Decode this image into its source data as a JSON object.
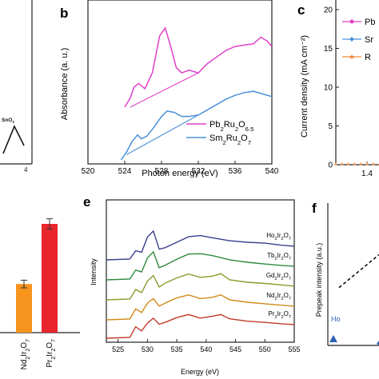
{
  "panels": {
    "a": {
      "inline_label": "SnO",
      "inline_sub": "2",
      "tick_right": "4"
    },
    "b": {
      "panel_label": "b",
      "xlabel": "Photon energy (eV)",
      "ylabel": "Absorbance (a. u.)",
      "xticks": [
        "520",
        "524",
        "528",
        "532",
        "536",
        "540"
      ],
      "legend": [
        {
          "id": "pb",
          "color": "#e040c8",
          "parts": [
            [
              "Pb",
              ""
            ],
            [
              "2",
              "sub"
            ],
            [
              "Ru",
              ""
            ],
            [
              "2",
              "sub"
            ],
            [
              "O",
              ""
            ],
            [
              "6.5",
              "sub"
            ]
          ]
        },
        {
          "id": "sm",
          "color": "#4a90d9",
          "parts": [
            [
              "Sm",
              ""
            ],
            [
              "2",
              "sub"
            ],
            [
              "Ru",
              ""
            ],
            [
              "2",
              "sub"
            ],
            [
              "O",
              ""
            ],
            [
              "7",
              "sub"
            ]
          ]
        }
      ]
    },
    "c": {
      "panel_label": "c",
      "ylabel": "Current density (mA cm⁻²)",
      "yticks": [
        "0",
        "5",
        "10",
        "15",
        "20"
      ],
      "xtick": "1.4",
      "legend": [
        {
          "label": "Pb",
          "color": "#e040c8"
        },
        {
          "label": "Sr",
          "color": "#4a90d9"
        },
        {
          "label": "R",
          "color": "#f08a40"
        }
      ]
    },
    "d": {
      "bars": [
        {
          "id": "nd",
          "color": "#f7941d",
          "parts": [
            [
              "Nd",
              ""
            ],
            [
              "2",
              "sub"
            ],
            [
              "Ir",
              ""
            ],
            [
              "2",
              "sub"
            ],
            [
              "O",
              ""
            ],
            [
              "7",
              "sub"
            ]
          ]
        },
        {
          "id": "pr",
          "color": "#e8262b",
          "parts": [
            [
              "Pr",
              ""
            ],
            [
              "2",
              "sub"
            ],
            [
              "Ir",
              ""
            ],
            [
              "2",
              "sub"
            ],
            [
              "O",
              ""
            ],
            [
              "7",
              "sub"
            ]
          ]
        }
      ]
    },
    "e": {
      "panel_label": "e",
      "xlabel": "Energy (eV)",
      "ylabel": "Intensity",
      "xticks": [
        "525",
        "530",
        "535",
        "540",
        "545",
        "550",
        "555"
      ],
      "curves": [
        {
          "id": "ho",
          "color": "#3b3f8f",
          "parts": [
            [
              "Ho",
              ""
            ],
            [
              "2",
              "sub"
            ],
            [
              "Ir",
              ""
            ],
            [
              "2",
              "sub"
            ],
            [
              "O",
              ""
            ],
            [
              "7",
              "sub"
            ]
          ]
        },
        {
          "id": "tb",
          "color": "#2e8a3e",
          "parts": [
            [
              "Tb",
              ""
            ],
            [
              "2",
              "sub"
            ],
            [
              "Ir",
              ""
            ],
            [
              "2",
              "sub"
            ],
            [
              "O",
              ""
            ],
            [
              "7",
              "sub"
            ]
          ]
        },
        {
          "id": "gd",
          "color": "#8a9a2c",
          "parts": [
            [
              "Gd",
              ""
            ],
            [
              "2",
              "sub"
            ],
            [
              "Ir",
              ""
            ],
            [
              "2",
              "sub"
            ],
            [
              "O",
              ""
            ],
            [
              "7",
              "sub"
            ]
          ]
        },
        {
          "id": "nd",
          "color": "#d08a1a",
          "parts": [
            [
              "Nd",
              ""
            ],
            [
              "2",
              "sub"
            ],
            [
              "Ir",
              ""
            ],
            [
              "2",
              "sub"
            ],
            [
              "O",
              ""
            ],
            [
              "7",
              "sub"
            ]
          ]
        },
        {
          "id": "pr",
          "color": "#c03a2a",
          "parts": [
            [
              "Pr",
              ""
            ],
            [
              "2",
              "sub"
            ],
            [
              "Ir",
              ""
            ],
            [
              "2",
              "sub"
            ],
            [
              "O",
              ""
            ],
            [
              "7",
              "sub"
            ]
          ]
        }
      ]
    },
    "f": {
      "panel_label": "f",
      "ylabel": "Prepeak intensity (a.u.)",
      "point_label": "Ho",
      "marker_color": "#2f5fb3"
    }
  },
  "chart_data": [
    {
      "panel": "b",
      "type": "line",
      "xlabel": "Photon energy (eV)",
      "ylabel": "Absorbance (a. u.)",
      "xlim": [
        520,
        540
      ],
      "series": [
        {
          "name": "Pb2Ru2O6.5",
          "color": "#e040c8",
          "x": [
            524.0,
            524.6,
            525.0,
            525.5,
            526.2,
            527.0,
            527.8,
            528.4,
            529.0,
            529.6,
            530.2,
            531.0,
            532.0,
            533.0,
            534.0,
            535.0,
            536.0,
            537.0,
            538.0,
            538.8,
            539.5,
            540.0
          ],
          "y": [
            0.4,
            0.47,
            0.55,
            0.58,
            0.54,
            0.66,
            0.94,
            1.0,
            0.86,
            0.7,
            0.66,
            0.68,
            0.66,
            0.73,
            0.78,
            0.83,
            0.86,
            0.87,
            0.88,
            0.93,
            0.9,
            0.86
          ]
        },
        {
          "name": "Sm2Ru2O7",
          "color": "#4a90d9",
          "x": [
            523.6,
            524.2,
            524.8,
            525.4,
            525.8,
            526.4,
            527.2,
            528.0,
            528.6,
            529.4,
            530.2,
            531.0,
            532.0,
            533.0,
            534.0,
            535.0,
            536.0,
            537.0,
            538.0,
            539.0,
            540.0
          ],
          "y": [
            0.0,
            0.06,
            0.14,
            0.19,
            0.16,
            0.18,
            0.25,
            0.33,
            0.37,
            0.36,
            0.33,
            0.33,
            0.34,
            0.38,
            0.42,
            0.46,
            0.49,
            0.51,
            0.52,
            0.5,
            0.48
          ]
        },
        {
          "name": "Pb2Ru2O6.5 background",
          "color": "#e040c8",
          "x": [
            524.6,
            532.0
          ],
          "y": [
            0.4,
            0.66
          ]
        },
        {
          "name": "Sm2Ru2O7 background",
          "color": "#4a90d9",
          "x": [
            524.2,
            532.0
          ],
          "y": [
            0.04,
            0.34
          ]
        }
      ]
    },
    {
      "panel": "c",
      "type": "line",
      "ylabel": "Current density (mA cm⁻²)",
      "ylim": [
        0,
        20
      ],
      "xlim": [
        1.3,
        1.5
      ],
      "series": [
        {
          "name": "Pb",
          "color": "#e040c8",
          "x": [
            1.3,
            1.5
          ],
          "y": [
            0,
            0
          ]
        },
        {
          "name": "Sr",
          "color": "#4a90d9",
          "x": [
            1.3,
            1.5
          ],
          "y": [
            0,
            0
          ]
        },
        {
          "name": "R",
          "color": "#f08a40",
          "x": [
            1.3,
            1.32,
            1.34,
            1.36,
            1.38,
            1.4,
            1.42,
            1.44,
            1.46,
            1.48,
            1.5
          ],
          "y": [
            0,
            0,
            0,
            0,
            0,
            0,
            0,
            0,
            0,
            0,
            0
          ]
        }
      ]
    },
    {
      "panel": "d",
      "type": "bar",
      "categories": [
        "Nd2Ir2O7",
        "Pr2Ir2O7"
      ],
      "values": [
        0.38,
        0.85
      ],
      "errors": [
        0.03,
        0.04
      ],
      "ylim": [
        0,
        1
      ]
    },
    {
      "panel": "e",
      "type": "line",
      "xlabel": "Energy (eV)",
      "ylabel": "Intensity",
      "xlim": [
        523,
        555
      ],
      "series": [
        {
          "name": "Ho2Ir2O7",
          "offset": 4,
          "x": [
            523,
            527,
            528,
            529,
            530,
            531,
            532,
            533,
            535,
            537,
            539,
            541,
            544,
            547,
            550,
            553,
            555
          ],
          "y": [
            0.0,
            0.03,
            0.3,
            0.25,
            0.75,
            0.95,
            0.35,
            0.4,
            0.58,
            0.76,
            0.8,
            0.73,
            0.63,
            0.58,
            0.55,
            0.48,
            0.45
          ]
        },
        {
          "name": "Tb2Ir2O7",
          "offset": 3,
          "x": [
            523,
            527,
            528,
            529,
            530,
            531,
            532,
            533,
            535,
            537,
            539,
            541,
            544,
            547,
            550,
            553,
            555
          ],
          "y": [
            0.0,
            0.03,
            0.32,
            0.26,
            0.72,
            0.92,
            0.4,
            0.48,
            0.68,
            0.85,
            0.86,
            0.8,
            0.66,
            0.58,
            0.52,
            0.47,
            0.45
          ]
        },
        {
          "name": "Gd2Ir2O7",
          "offset": 2,
          "x": [
            523,
            527,
            528,
            529,
            530,
            531,
            532,
            533,
            535,
            537,
            539,
            541,
            542.5,
            544,
            547,
            550,
            553,
            555
          ],
          "y": [
            0.0,
            0.03,
            0.34,
            0.24,
            0.62,
            0.8,
            0.42,
            0.55,
            0.72,
            0.85,
            0.74,
            0.78,
            0.86,
            0.66,
            0.58,
            0.54,
            0.49,
            0.45
          ]
        },
        {
          "name": "Nd2Ir2O7",
          "offset": 1,
          "x": [
            523,
            527,
            528,
            529,
            530,
            531,
            532,
            533,
            535,
            537,
            539,
            541,
            542.5,
            544,
            547,
            550,
            553,
            555
          ],
          "y": [
            0.0,
            0.03,
            0.36,
            0.24,
            0.55,
            0.7,
            0.45,
            0.55,
            0.72,
            0.82,
            0.7,
            0.74,
            0.82,
            0.66,
            0.58,
            0.53,
            0.48,
            0.45
          ]
        },
        {
          "name": "Pr2Ir2O7",
          "offset": 0,
          "x": [
            523,
            527,
            528,
            529,
            530,
            531,
            532,
            533,
            535,
            537,
            539,
            541,
            542.5,
            544,
            547,
            550,
            553,
            555
          ],
          "y": [
            0.0,
            0.03,
            0.38,
            0.24,
            0.5,
            0.66,
            0.46,
            0.52,
            0.68,
            0.78,
            0.66,
            0.72,
            0.78,
            0.64,
            0.56,
            0.52,
            0.47,
            0.45
          ]
        }
      ]
    },
    {
      "panel": "f",
      "type": "scatter",
      "ylabel": "Prepeak intensity (a.u.)",
      "points": [
        {
          "label": "Ho",
          "x": 0.2,
          "y": 0.2,
          "marker": "triangle"
        }
      ],
      "trend": {
        "x": [
          0.0,
          1.0
        ],
        "y": [
          0.35,
          0.75
        ],
        "style": "dashed"
      },
      "xlim": [
        0,
        1
      ],
      "ylim": [
        0,
        1
      ]
    }
  ]
}
